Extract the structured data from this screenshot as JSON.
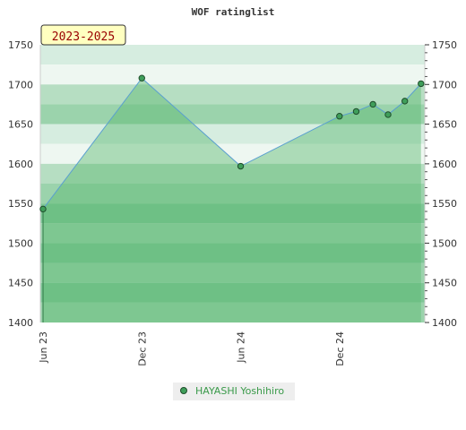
{
  "chart_data": {
    "type": "area",
    "title": "WOF ratinglist",
    "period_label": "2023-2025",
    "xlabel": "",
    "ylabel": "",
    "x_ticks": [
      "Jun 23",
      "Dec 23",
      "Jun 24",
      "Dec 24"
    ],
    "y_ticks": [
      1400,
      1450,
      1500,
      1550,
      1600,
      1650,
      1700,
      1750
    ],
    "ylim": [
      1400,
      1750
    ],
    "grid": true,
    "legend_position": "bottom",
    "series": [
      {
        "name": "HAYASHI Yoshihiro",
        "x": [
          "2023-06-01",
          "2023-12-01",
          "2024-06-01",
          "2024-12-01",
          "2025-01-01",
          "2025-02-01",
          "2025-03-01",
          "2025-04-01",
          "2025-05-01"
        ],
        "values": [
          1543,
          1708,
          1597,
          1660,
          1666,
          1675,
          1662,
          1679,
          1701
        ]
      }
    ],
    "colors": {
      "area_fill": "#5cb870",
      "line": "#5a9fd0",
      "marker_fill": "#3f9e5a",
      "legend_text": "#3a9a4a",
      "period_box": "#ffffc0",
      "band_dark": "#7ec696",
      "band_mid": "#9bd3ac",
      "band_light": "#b6deC2",
      "band_lighter": "#d6ede0",
      "band_lightest": "#eef7f1"
    }
  }
}
